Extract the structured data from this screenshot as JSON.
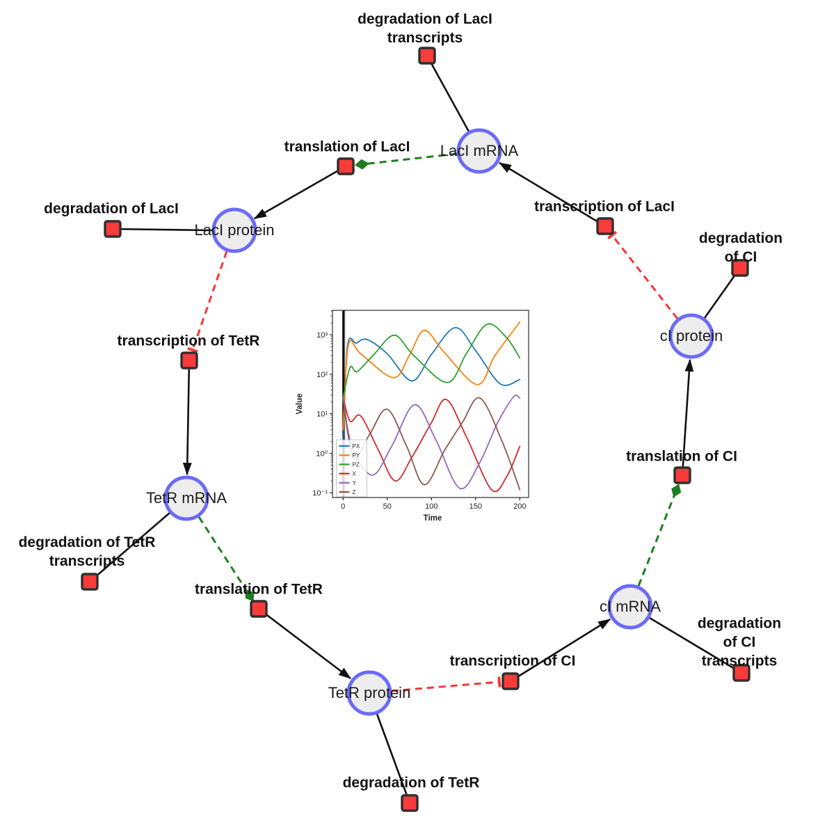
{
  "diagram": {
    "species": [
      {
        "id": "laci-mrna",
        "label": "LacI mRNA"
      },
      {
        "id": "laci-protein",
        "label": "LacI protein"
      },
      {
        "id": "tetr-mrna",
        "label": "TetR mRNA"
      },
      {
        "id": "tetr-protein",
        "label": "TetR protein"
      },
      {
        "id": "ci-mrna",
        "label": "cI mRNA"
      },
      {
        "id": "ci-protein",
        "label": "cI protein"
      }
    ],
    "reactions": [
      {
        "id": "degradation-of-laci-transcripts",
        "label": "degradation of LacI\ntranscripts"
      },
      {
        "id": "translation-of-laci",
        "label": "translation of LacI"
      },
      {
        "id": "degradation-of-laci",
        "label": "degradation of LacI"
      },
      {
        "id": "transcription-of-tetr",
        "label": "transcription of TetR"
      },
      {
        "id": "transcription-of-laci",
        "label": "transcription of LacI"
      },
      {
        "id": "degradation-of-ci",
        "label": "degradation of CI"
      },
      {
        "id": "translation-of-ci",
        "label": "translation of CI"
      },
      {
        "id": "degradation-of-tetr-transcripts",
        "label": "degradation of TetR\ntranscripts"
      },
      {
        "id": "translation-of-tetr",
        "label": "translation of TetR"
      },
      {
        "id": "transcription-of-ci",
        "label": "transcription of CI"
      },
      {
        "id": "degradation-of-ci-transcripts",
        "label": "degradation of CI\ntranscripts"
      },
      {
        "id": "degradation-of-tetr",
        "label": "degradation of TetR"
      }
    ],
    "edge_colors": {
      "production": "#111111",
      "consumption": "#111111",
      "modifier": "#1e7d1e",
      "inhibition": "#f93535"
    },
    "node_colors": {
      "species_fill": "#ededed",
      "species_border": "#6b6bf8",
      "reaction_fill": "#fb3a3a",
      "reaction_border": "#2f2f2f"
    }
  },
  "chart_data": {
    "type": "line",
    "title": "",
    "xlabel": "Time",
    "ylabel": "Value",
    "xlim": [
      -12,
      210
    ],
    "ylog": true,
    "ylim_log10": [
      -1.12,
      3.62
    ],
    "xticks": [
      0,
      50,
      100,
      150,
      200
    ],
    "yticks": [
      [
        0.1,
        "10⁻¹"
      ],
      [
        1,
        "10⁰"
      ],
      [
        10,
        "10¹"
      ],
      [
        100,
        "10²"
      ],
      [
        1000,
        "10³"
      ]
    ],
    "grid": false,
    "legend_position": "lower left",
    "marker_line_t": 0.5,
    "series": [
      {
        "name": "PX",
        "color": "#1f77b4",
        "points": [
          [
            0,
            2
          ],
          [
            5,
            520
          ],
          [
            15,
            620
          ],
          [
            27,
            760
          ],
          [
            50,
            330
          ],
          [
            78,
            68
          ],
          [
            100,
            320
          ],
          [
            127,
            1520
          ],
          [
            150,
            400
          ],
          [
            178,
            57
          ],
          [
            200,
            74
          ]
        ]
      },
      {
        "name": "PY",
        "color": "#ff7f0e",
        "points": [
          [
            0,
            4
          ],
          [
            6,
            550
          ],
          [
            20,
            330
          ],
          [
            57,
            82
          ],
          [
            75,
            300
          ],
          [
            92,
            1300
          ],
          [
            115,
            350
          ],
          [
            152,
            55
          ],
          [
            172,
            300
          ],
          [
            200,
            2100
          ]
        ]
      },
      {
        "name": "PZ",
        "color": "#2ca02c",
        "points": [
          [
            0,
            25
          ],
          [
            8,
            150
          ],
          [
            16,
            118
          ],
          [
            35,
            320
          ],
          [
            58,
            980
          ],
          [
            80,
            300
          ],
          [
            118,
            62
          ],
          [
            140,
            350
          ],
          [
            163,
            1850
          ],
          [
            185,
            850
          ],
          [
            200,
            260
          ]
        ]
      },
      {
        "name": "X",
        "color": "#d62728",
        "points": [
          [
            0,
            26
          ],
          [
            8,
            6.5
          ],
          [
            20,
            8.8
          ],
          [
            40,
            1.2
          ],
          [
            59,
            0.2
          ],
          [
            78,
            0.8
          ],
          [
            100,
            6
          ],
          [
            117,
            23
          ],
          [
            140,
            2.5
          ],
          [
            168,
            0.12
          ],
          [
            185,
            0.25
          ],
          [
            200,
            1.5
          ]
        ]
      },
      {
        "name": "Y",
        "color": "#9467bd",
        "points": [
          [
            0,
            26
          ],
          [
            10,
            1.5
          ],
          [
            33,
            0.28
          ],
          [
            55,
            1.5
          ],
          [
            81,
            17
          ],
          [
            105,
            2.2
          ],
          [
            132,
            0.13
          ],
          [
            155,
            0.6
          ],
          [
            175,
            6
          ],
          [
            193,
            27
          ],
          [
            200,
            25
          ]
        ]
      },
      {
        "name": "Z",
        "color": "#8c564b",
        "points": [
          [
            0,
            22
          ],
          [
            12,
            0.8
          ],
          [
            30,
            3
          ],
          [
            50,
            13
          ],
          [
            72,
            1.5
          ],
          [
            92,
            0.16
          ],
          [
            115,
            1.2
          ],
          [
            135,
            6
          ],
          [
            155,
            25
          ],
          [
            180,
            2
          ],
          [
            200,
            0.12
          ]
        ]
      }
    ]
  }
}
